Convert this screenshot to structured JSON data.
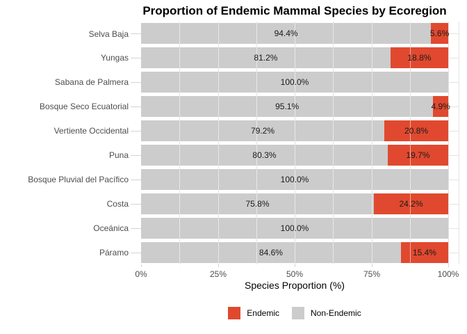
{
  "title": "Proportion of Endemic Mammal Species by Ecoregion",
  "axis": {
    "x_label": "Species Proportion (%)",
    "x_tick_labels": [
      "0%",
      "25%",
      "50%",
      "75%",
      "100%"
    ],
    "x_tick_values": [
      0,
      25,
      50,
      75,
      100
    ]
  },
  "legend": {
    "items": [
      {
        "label": "Endemic",
        "color": "#E0492F"
      },
      {
        "label": "Non-Endemic",
        "color": "#CCCCCC"
      }
    ]
  },
  "colors": {
    "endemic": "#E0492F",
    "non_endemic": "#CCCCCC",
    "gridline": "#E3E3E3",
    "tick": "#D4D4D4",
    "axis_text": "#4d4d4d",
    "bar_label": "#1a1a1a",
    "background": "#FFFFFF"
  },
  "chart_data": {
    "type": "bar",
    "orientation": "horizontal",
    "stacked": true,
    "title": "Proportion of Endemic Mammal Species by Ecoregion",
    "xlabel": "Species Proportion (%)",
    "ylabel": "",
    "xlim": [
      0,
      100
    ],
    "x_tick_labels": [
      "0%",
      "25%",
      "50%",
      "75%",
      "100%"
    ],
    "grid_step_pct": 12.5,
    "legend_position": "bottom",
    "categories": [
      "Selva Baja",
      "Yungas",
      "Sabana de Palmera",
      "Bosque Seco Ecuatorial",
      "Vertiente Occidental",
      "Puna",
      "Bosque Pluvial del Pacífico",
      "Costa",
      "Oceánica",
      "Páramo"
    ],
    "series": [
      {
        "name": "Non-Endemic",
        "color": "#CCCCCC",
        "values": [
          94.4,
          81.2,
          100.0,
          95.1,
          79.2,
          80.3,
          100.0,
          75.8,
          100.0,
          84.6
        ]
      },
      {
        "name": "Endemic",
        "color": "#E0492F",
        "values": [
          5.6,
          18.8,
          0.0,
          4.9,
          20.8,
          19.7,
          0.0,
          24.2,
          0.0,
          15.4
        ]
      }
    ],
    "stack_order": [
      "Non-Endemic",
      "Endemic"
    ],
    "bar_label_format": "{value:.1f}%",
    "bar_labels_hidden_when_zero": true
  }
}
